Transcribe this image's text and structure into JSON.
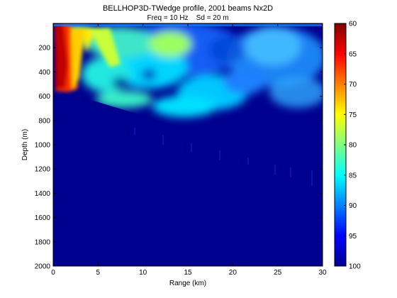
{
  "chart_data": {
    "type": "heatmap",
    "title": "BELLHOP3D-TWedge profile, 2001 beams Nx2D",
    "subtitle": "Freq = 10 Hz    Sd = 20 m",
    "xlabel": "Range (km)",
    "ylabel": "Depth (m)",
    "xlim": [
      0,
      30
    ],
    "ylim": [
      0,
      2000
    ],
    "y_reversed": true,
    "xticks": [
      0,
      5,
      10,
      15,
      20,
      25,
      30
    ],
    "yticks": [
      200,
      400,
      600,
      800,
      1000,
      1200,
      1400,
      1600,
      1800,
      2000
    ],
    "colorbar": {
      "min": 60,
      "max": 100,
      "ticks": [
        60,
        65,
        70,
        75,
        80,
        85,
        90,
        95,
        100
      ],
      "colormap": "jet",
      "reversed": true
    },
    "bathymetry": {
      "range_km": [
        0,
        0.4,
        1.5,
        2.5,
        5,
        10,
        15,
        20,
        25,
        30
      ],
      "depth_m": [
        0,
        600,
        570,
        600,
        680,
        800,
        900,
        1000,
        1100,
        1200
      ]
    }
  }
}
